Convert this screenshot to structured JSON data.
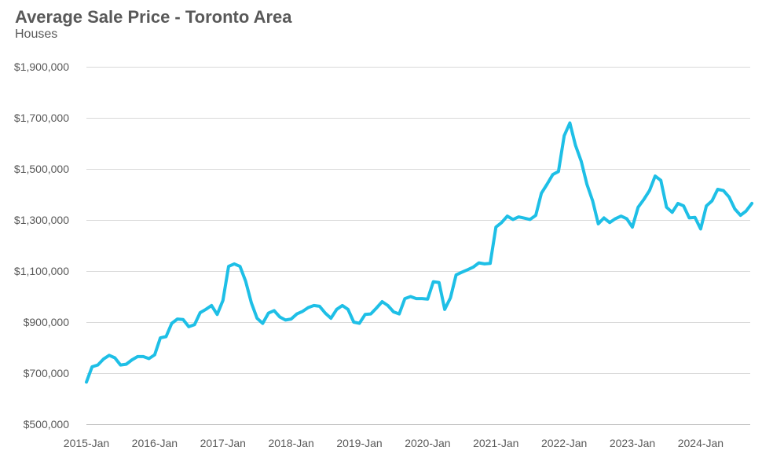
{
  "chart_data": {
    "type": "line",
    "title": "Average Sale Price - Toronto Area",
    "subtitle": "Houses",
    "xlabel": "",
    "ylabel": "",
    "ylim": [
      500000,
      1900000
    ],
    "y_ticks": [
      500000,
      700000,
      900000,
      1100000,
      1300000,
      1500000,
      1700000,
      1900000
    ],
    "y_tick_labels": [
      "$500,000",
      "$700,000",
      "$900,000",
      "$1,100,000",
      "$1,300,000",
      "$1,500,000",
      "$1,700,000",
      "$1,900,000"
    ],
    "x_tick_labels": [
      "2015-Jan",
      "2016-Jan",
      "2017-Jan",
      "2018-Jan",
      "2019-Jan",
      "2020-Jan",
      "2021-Jan",
      "2022-Jan",
      "2023-Jan",
      "2024-Jan"
    ],
    "x_tick_every": 12,
    "grid": "horizontal",
    "line_color": "#1ebfe6",
    "series": [
      {
        "values": [
          665000,
          725000,
          732000,
          755000,
          770000,
          760000,
          732000,
          735000,
          752000,
          765000,
          765000,
          757000,
          772000,
          838000,
          843000,
          895000,
          912000,
          910000,
          882000,
          890000,
          937000,
          950000,
          965000,
          930000,
          985000,
          1118000,
          1128000,
          1118000,
          1060000,
          975000,
          915000,
          895000,
          935000,
          945000,
          920000,
          908000,
          912000,
          932000,
          942000,
          957000,
          965000,
          962000,
          935000,
          915000,
          950000,
          965000,
          950000,
          900000,
          895000,
          930000,
          932000,
          955000,
          980000,
          965000,
          940000,
          932000,
          992000,
          1000000,
          992000,
          992000,
          990000,
          1058000,
          1055000,
          950000,
          995000,
          1085000,
          1095000,
          1105000,
          1115000,
          1132000,
          1128000,
          1130000,
          1272000,
          1290000,
          1315000,
          1302000,
          1312000,
          1307000,
          1302000,
          1318000,
          1405000,
          1440000,
          1478000,
          1490000,
          1630000,
          1680000,
          1592000,
          1530000,
          1440000,
          1375000,
          1285000,
          1308000,
          1290000,
          1305000,
          1315000,
          1305000,
          1272000,
          1350000,
          1380000,
          1415000,
          1472000,
          1455000,
          1350000,
          1330000,
          1365000,
          1355000,
          1308000,
          1310000,
          1265000,
          1355000,
          1375000,
          1420000,
          1415000,
          1390000,
          1343000,
          1318000,
          1335000,
          1365000
        ]
      }
    ]
  }
}
